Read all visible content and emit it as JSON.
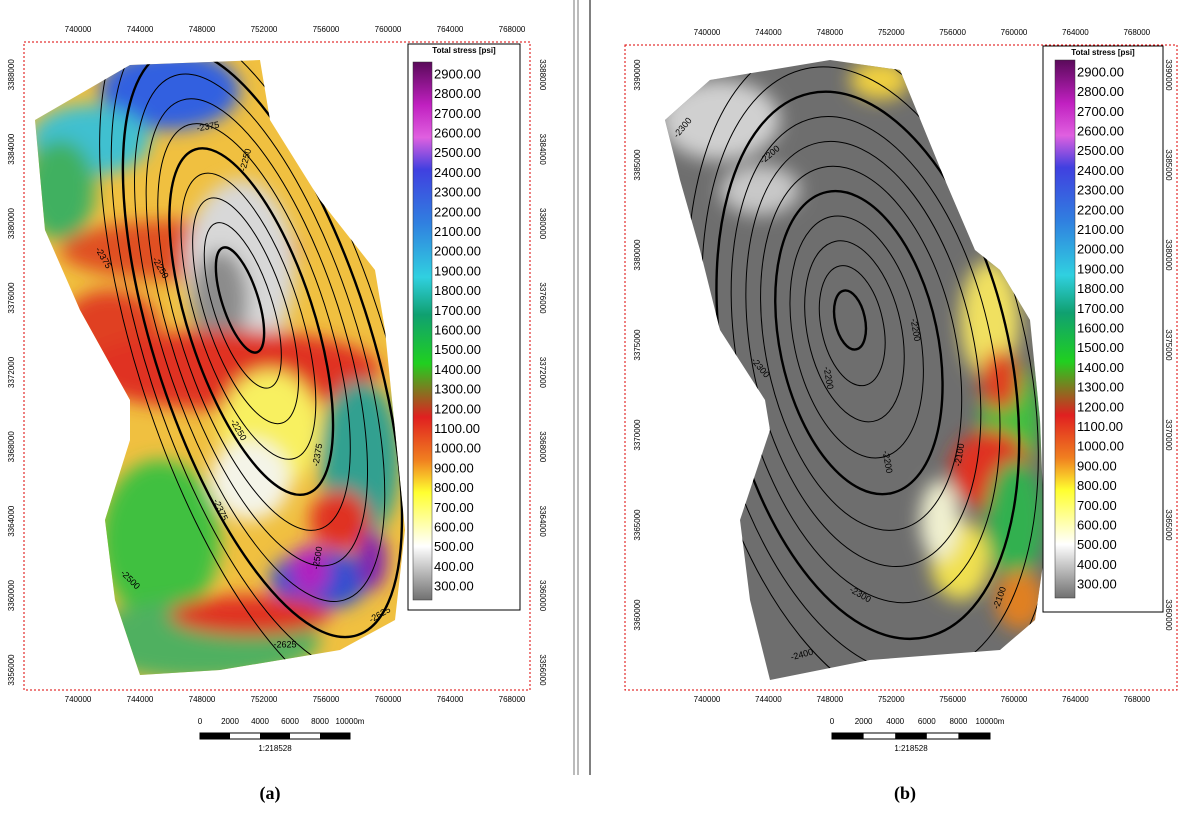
{
  "panels": [
    {
      "caption": "(a)",
      "x_labels_top": [
        "740000",
        "744000",
        "748000",
        "752000",
        "756000",
        "760000",
        "764000",
        "768000"
      ],
      "x_labels_bottom": [
        "740000",
        "744000",
        "748000",
        "752000",
        "756000",
        "760000",
        "764000",
        "768000"
      ],
      "y_labels_left": [
        "3356000",
        "3360000",
        "3364000",
        "3368000",
        "3372000",
        "3376000",
        "3380000",
        "3384000",
        "3388000"
      ],
      "y_labels_right": [
        "3356000",
        "3360000",
        "3364000",
        "3368000",
        "3372000",
        "3376000",
        "3380000",
        "3384000",
        "3388000"
      ],
      "legend": {
        "title": "Total stress [psi]",
        "labels": [
          "2900.00",
          "2800.00",
          "2700.00",
          "2600.00",
          "2500.00",
          "2400.00",
          "2300.00",
          "2200.00",
          "2100.00",
          "2000.00",
          "1900.00",
          "1800.00",
          "1700.00",
          "1600.00",
          "1500.00",
          "1400.00",
          "1300.00",
          "1200.00",
          "1100.00",
          "1000.00",
          "900.00",
          "800.00",
          "700.00",
          "600.00",
          "500.00",
          "400.00",
          "300.00"
        ]
      },
      "contour_labels": [
        "-2375",
        "-2250",
        "-2375",
        "-2250",
        "-2375",
        "-2250",
        "-2375",
        "-2500",
        "-2500",
        "-2625",
        "-2625"
      ],
      "scale": {
        "labels": [
          "0",
          "2000",
          "4000",
          "6000",
          "8000",
          "10000m"
        ],
        "ratio": "1:218528"
      }
    },
    {
      "caption": "(b)",
      "x_labels_top": [
        "740000",
        "744000",
        "748000",
        "752000",
        "756000",
        "760000",
        "764000",
        "768000"
      ],
      "x_labels_bottom": [
        "740000",
        "744000",
        "748000",
        "752000",
        "756000",
        "760000",
        "764000",
        "768000"
      ],
      "y_labels_left": [
        "3360000",
        "3365000",
        "3370000",
        "3375000",
        "3380000",
        "3385000",
        "3390000"
      ],
      "y_labels_right": [
        "3360000",
        "3365000",
        "3370000",
        "3375000",
        "3380000",
        "3385000",
        "3390000"
      ],
      "legend": {
        "title": "Total stress [psi]",
        "labels": [
          "2900.00",
          "2800.00",
          "2700.00",
          "2600.00",
          "2500.00",
          "2400.00",
          "2300.00",
          "2200.00",
          "2100.00",
          "2000.00",
          "1900.00",
          "1800.00",
          "1700.00",
          "1600.00",
          "1500.00",
          "1400.00",
          "1300.00",
          "1200.00",
          "1100.00",
          "1000.00",
          "900.00",
          "800.00",
          "700.00",
          "600.00",
          "500.00",
          "400.00",
          "300.00"
        ]
      },
      "contour_labels": [
        "-2300",
        "-2200",
        "-2300",
        "-2200",
        "-2200",
        "-2200",
        "-2300",
        "-2100",
        "-2100",
        "-2400"
      ],
      "scale": {
        "labels": [
          "0",
          "2000",
          "4000",
          "6000",
          "8000",
          "10000m"
        ],
        "ratio": "1:218528"
      }
    }
  ]
}
